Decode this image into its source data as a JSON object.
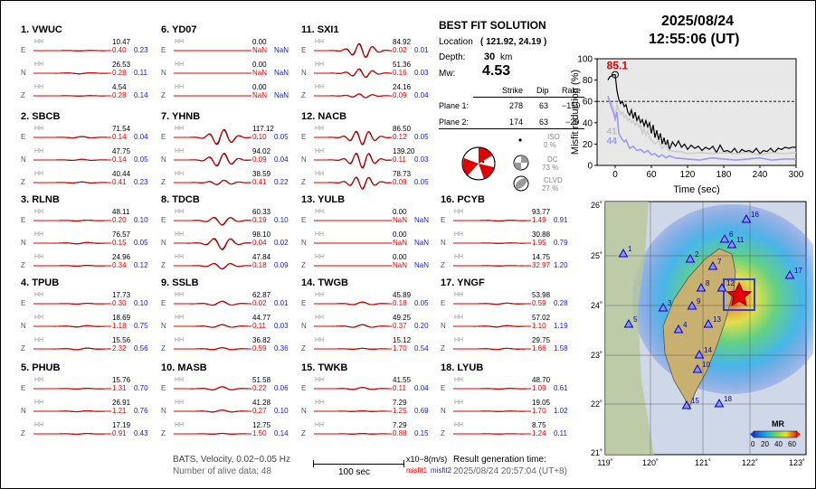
{
  "stations": [
    {
      "num": "1.",
      "name": "VWUC",
      "ch": [
        {
          "c": "E",
          "amp": "10.47",
          "m1": "0.40",
          "m2": "0.23",
          "a": 0.03,
          "f": 1.5
        },
        {
          "c": "N",
          "amp": "26.53",
          "m1": "0.28",
          "m2": "0.11",
          "a": 0.08,
          "f": 1.5
        },
        {
          "c": "Z",
          "amp": "4.54",
          "m1": "0.28",
          "m2": "0.14",
          "a": 0.03,
          "f": 1.5
        }
      ]
    },
    {
      "num": "2.",
      "name": "SBCB",
      "ch": [
        {
          "c": "E",
          "amp": "71.54",
          "m1": "0.14",
          "m2": "0.04",
          "a": 0.1,
          "f": 1.8
        },
        {
          "c": "N",
          "amp": "47.75",
          "m1": "0.14",
          "m2": "0.05",
          "a": 0.08,
          "f": 1.8
        },
        {
          "c": "Z",
          "amp": "40.44",
          "m1": "0.41",
          "m2": "0.23",
          "a": 0.08,
          "f": 1.8
        }
      ]
    },
    {
      "num": "3.",
      "name": "RLNB",
      "ch": [
        {
          "c": "E",
          "amp": "48.11",
          "m1": "0.20",
          "m2": "0.10",
          "a": 0.06,
          "f": 1.6
        },
        {
          "c": "N",
          "amp": "76.57",
          "m1": "0.15",
          "m2": "0.05",
          "a": 0.1,
          "f": 1.6
        },
        {
          "c": "Z",
          "amp": "24.96",
          "m1": "0.34",
          "m2": "0.12",
          "a": 0.05,
          "f": 1.6
        }
      ]
    },
    {
      "num": "4.",
      "name": "TPUB",
      "ch": [
        {
          "c": "E",
          "amp": "17.73",
          "m1": "0.30",
          "m2": "0.10",
          "a": 0.06,
          "f": 1.6
        },
        {
          "c": "N",
          "amp": "18.69",
          "m1": "1.18",
          "m2": "0.75",
          "a": 0.1,
          "f": 1.6
        },
        {
          "c": "Z",
          "amp": "15.56",
          "m1": "2.32",
          "m2": "0.56",
          "a": 0.12,
          "f": 1.6
        }
      ]
    },
    {
      "num": "5.",
      "name": "PHUB",
      "ch": [
        {
          "c": "E",
          "amp": "15.76",
          "m1": "1.31",
          "m2": "0.70",
          "a": 0.05,
          "f": 1.6
        },
        {
          "c": "N",
          "amp": "26.91",
          "m1": "1.21",
          "m2": "0.76",
          "a": 0.07,
          "f": 1.6
        },
        {
          "c": "Z",
          "amp": "17.19",
          "m1": "0.91",
          "m2": "0.43",
          "a": 0.06,
          "f": 1.6
        }
      ]
    },
    {
      "num": "6.",
      "name": "YD07",
      "ch": [
        {
          "c": "E",
          "amp": "0.00",
          "m1": "NaN",
          "m2": "NaN",
          "a": 0,
          "f": 1
        },
        {
          "c": "N",
          "amp": "0.00",
          "m1": "NaN",
          "m2": "NaN",
          "a": 0,
          "f": 1
        },
        {
          "c": "Z",
          "amp": "0.00",
          "m1": "NaN",
          "m2": "NaN",
          "a": 0,
          "f": 1
        }
      ]
    },
    {
      "num": "7.",
      "name": "YHNB",
      "ch": [
        {
          "c": "E",
          "amp": "117.12",
          "m1": "0.10",
          "m2": "0.05",
          "a": 1.0,
          "f": 2.5
        },
        {
          "c": "N",
          "amp": "94.02",
          "m1": "0.09",
          "m2": "0.04",
          "a": 0.85,
          "f": 2.5
        },
        {
          "c": "Z",
          "amp": "38.59",
          "m1": "0.41",
          "m2": "0.22",
          "a": 0.3,
          "f": 2.5
        }
      ]
    },
    {
      "num": "8.",
      "name": "TDCB",
      "ch": [
        {
          "c": "E",
          "amp": "60.33",
          "m1": "0.19",
          "m2": "0.10",
          "a": 0.55,
          "f": 2.2
        },
        {
          "c": "N",
          "amp": "98.10",
          "m1": "0.04",
          "m2": "0.02",
          "a": 0.8,
          "f": 2.2
        },
        {
          "c": "Z",
          "amp": "47.84",
          "m1": "0.18",
          "m2": "0.09",
          "a": 0.4,
          "f": 2.2
        }
      ]
    },
    {
      "num": "9.",
      "name": "SSLB",
      "ch": [
        {
          "c": "E",
          "amp": "62.87",
          "m1": "0.02",
          "m2": "0.01",
          "a": 0.3,
          "f": 1.8
        },
        {
          "c": "N",
          "amp": "44.77",
          "m1": "0.11",
          "m2": "0.03",
          "a": 0.2,
          "f": 1.8
        },
        {
          "c": "Z",
          "amp": "36.82",
          "m1": "0.59",
          "m2": "0.36",
          "a": 0.15,
          "f": 1.8
        }
      ]
    },
    {
      "num": "10.",
      "name": "MASB",
      "ch": [
        {
          "c": "E",
          "amp": "51.58",
          "m1": "0.22",
          "m2": "0.06",
          "a": 0.25,
          "f": 1.8
        },
        {
          "c": "N",
          "amp": "41.28",
          "m1": "0.27",
          "m2": "0.10",
          "a": 0.15,
          "f": 1.8
        },
        {
          "c": "Z",
          "amp": "12.75",
          "m1": "1.50",
          "m2": "0.14",
          "a": 0.06,
          "f": 1.8
        }
      ]
    },
    {
      "num": "11.",
      "name": "SXI1",
      "ch": [
        {
          "c": "E",
          "amp": "84.92",
          "m1": "0.02",
          "m2": "0.01",
          "a": 0.9,
          "f": 2.8
        },
        {
          "c": "N",
          "amp": "51.36",
          "m1": "0.16",
          "m2": "0.03",
          "a": 0.55,
          "f": 2.8
        },
        {
          "c": "Z",
          "amp": "24.16",
          "m1": "0.09",
          "m2": "0.04",
          "a": 0.25,
          "f": 2.8
        }
      ]
    },
    {
      "num": "12.",
      "name": "NACB",
      "ch": [
        {
          "c": "E",
          "amp": "86.50",
          "m1": "0.12",
          "m2": "0.05",
          "a": 0.9,
          "f": 3
        },
        {
          "c": "N",
          "amp": "139.20",
          "m1": "0.11",
          "m2": "0.03",
          "a": 1.0,
          "f": 3
        },
        {
          "c": "Z",
          "amp": "78.73",
          "m1": "0.09",
          "m2": "0.05",
          "a": 0.8,
          "f": 3
        }
      ]
    },
    {
      "num": "13.",
      "name": "YULB",
      "ch": [
        {
          "c": "E",
          "amp": "0.00",
          "m1": "NaN",
          "m2": "NaN",
          "a": 0,
          "f": 1
        },
        {
          "c": "N",
          "amp": "0.00",
          "m1": "NaN",
          "m2": "NaN",
          "a": 0,
          "f": 1
        },
        {
          "c": "Z",
          "amp": "0.00",
          "m1": "NaN",
          "m2": "NaN",
          "a": 0,
          "f": 1
        }
      ]
    },
    {
      "num": "14.",
      "name": "TWGB",
      "ch": [
        {
          "c": "E",
          "amp": "45.89",
          "m1": "0.18",
          "m2": "0.05",
          "a": 0.2,
          "f": 1.8
        },
        {
          "c": "N",
          "amp": "49.25",
          "m1": "0.37",
          "m2": "0.20",
          "a": 0.2,
          "f": 1.8
        },
        {
          "c": "Z",
          "amp": "15.12",
          "m1": "1.70",
          "m2": "0.54",
          "a": 0.07,
          "f": 1.8
        }
      ]
    },
    {
      "num": "15.",
      "name": "TWKB",
      "ch": [
        {
          "c": "E",
          "amp": "41.55",
          "m1": "0.11",
          "m2": "0.04",
          "a": 0.15,
          "f": 1.8
        },
        {
          "c": "N",
          "amp": "7.29",
          "m1": "1.25",
          "m2": "0.69",
          "a": 0.04,
          "f": 1.8
        },
        {
          "c": "Z",
          "amp": "7.29",
          "m1": "0.88",
          "m2": "0.15",
          "a": 0.04,
          "f": 1.8
        }
      ]
    },
    {
      "num": "16.",
      "name": "PCYB",
      "ch": [
        {
          "c": "E",
          "amp": "93.77",
          "m1": "1.49",
          "m2": "0.91",
          "a": 0.05,
          "f": 1.5
        },
        {
          "c": "N",
          "amp": "30.88",
          "m1": "1.95",
          "m2": "0.79",
          "a": 0.03,
          "f": 1.5
        },
        {
          "c": "Z",
          "amp": "14.75",
          "m1": "32.97",
          "m2": "1.20",
          "a": 0.02,
          "f": 1.5
        }
      ]
    },
    {
      "num": "17.",
      "name": "YNGF",
      "ch": [
        {
          "c": "E",
          "amp": "53.98",
          "m1": "0.59",
          "m2": "0.28",
          "a": 0.08,
          "f": 1.6
        },
        {
          "c": "N",
          "amp": "57.02",
          "m1": "1.10",
          "m2": "1.19",
          "a": 0.1,
          "f": 1.6
        },
        {
          "c": "Z",
          "amp": "29.75",
          "m1": "1.66",
          "m2": "1.58",
          "a": 0.08,
          "f": 1.6
        }
      ]
    },
    {
      "num": "18.",
      "name": "LYUB",
      "ch": [
        {
          "c": "E",
          "amp": "48.70",
          "m1": "1.09",
          "m2": "0.61",
          "a": 0.05,
          "f": 1.5
        },
        {
          "c": "N",
          "amp": "19.05",
          "m1": "1.70",
          "m2": "1.02",
          "a": 0.03,
          "f": 1.5
        },
        {
          "c": "Z",
          "amp": "8.75",
          "m1": "1.24",
          "m2": "0.11",
          "a": 0.02,
          "f": 1.5
        }
      ]
    }
  ],
  "channel_tag": "HH",
  "solution": {
    "heading": "BEST FIT SOLUTION",
    "location_label": "Location",
    "location": "( 121.92, 24.19 )",
    "depth_label": "Depth:",
    "depth": "30",
    "depth_unit": "km",
    "mw_label": "Mw:",
    "mw": "4.53",
    "col_strike": "Strike",
    "col_dip": "Dip",
    "col_rake": "Rake",
    "plane1_label": "Plane 1:",
    "plane1": [
      "278",
      "63",
      "−150"
    ],
    "plane2_label": "Plane 2:",
    "plane2": [
      "174",
      "63",
      "−29"
    ],
    "iso_label": "ISO",
    "iso": "0 %",
    "dc_label": "DC",
    "dc": "73 %",
    "clvd_label": "CLVD",
    "clvd": "27 %"
  },
  "header": {
    "date": "2025/08/24",
    "time": "12:55:06  (UT)"
  },
  "chart_data": {
    "type": "line",
    "xlabel": "Time (sec)",
    "ylabel": "Misfit reduction (%)",
    "xlim": [
      -30,
      300
    ],
    "ylim": [
      0,
      100
    ],
    "xticks": [
      0,
      60,
      120,
      180,
      240,
      300
    ],
    "yticks": [
      0,
      20,
      40,
      60,
      80,
      100
    ],
    "reference_line": 60,
    "annotations": [
      {
        "text": "85.1",
        "color": "#e00000"
      },
      {
        "text": "41",
        "color": "#bbbbbb"
      },
      {
        "text": "44",
        "color": "#9a9aee"
      }
    ],
    "series": [
      {
        "color": "#000000",
        "x": [
          -12,
          -9,
          -6,
          -3,
          0,
          3,
          6,
          9,
          12,
          15,
          18,
          21,
          24,
          27,
          30,
          33,
          36,
          39,
          42,
          45,
          48,
          51,
          54,
          57,
          60,
          63,
          66,
          69,
          72,
          75,
          78,
          81,
          84,
          87,
          90,
          95,
          100,
          105,
          110,
          115,
          120,
          126,
          132,
          138,
          144,
          150,
          156,
          162,
          168,
          174,
          180,
          186,
          192,
          198,
          204,
          210,
          216,
          222,
          228,
          234,
          240,
          246,
          252,
          258,
          264,
          270,
          276,
          282,
          288,
          294,
          300
        ],
        "y": [
          80,
          83,
          84,
          85,
          85.1,
          70,
          62,
          58,
          60,
          55,
          57,
          50,
          47,
          52,
          44,
          50,
          42,
          46,
          40,
          43,
          37,
          42,
          36,
          40,
          30,
          38,
          26,
          33,
          24,
          30,
          20,
          26,
          18,
          24,
          15,
          22,
          18,
          23,
          17,
          20,
          15,
          19,
          16,
          18,
          14,
          17,
          15,
          18,
          12,
          19,
          13,
          14,
          12,
          16,
          11,
          15,
          13,
          14,
          12,
          16,
          11,
          14,
          13,
          16,
          12,
          16,
          15,
          17,
          16,
          17,
          17
        ]
      },
      {
        "color": "#cccccc",
        "x": [
          -12,
          -9,
          -6,
          -3,
          0,
          3,
          6,
          9,
          12,
          15,
          18,
          21,
          24,
          27,
          30,
          33,
          36,
          39,
          42,
          45,
          48,
          51,
          54,
          57,
          60,
          66,
          72,
          78,
          84,
          90,
          100,
          110,
          120,
          140,
          160,
          180,
          200,
          220,
          240,
          260,
          280,
          300
        ],
        "y": [
          62,
          60,
          58,
          55,
          41,
          58,
          52,
          48,
          50,
          45,
          47,
          42,
          44,
          40,
          42,
          38,
          40,
          36,
          38,
          30,
          34,
          28,
          32,
          26,
          24,
          20,
          23,
          16,
          19,
          14,
          13,
          13,
          11,
          12,
          11,
          12,
          11,
          12,
          10,
          12,
          11,
          12
        ]
      },
      {
        "color": "#9a9aee",
        "x": [
          -12,
          -9,
          -6,
          -3,
          0,
          3,
          6,
          9,
          12,
          15,
          18,
          21,
          24,
          30,
          36,
          42,
          48,
          54,
          60,
          66,
          72,
          78,
          84,
          90,
          100,
          120,
          140,
          160,
          180,
          200,
          220,
          240,
          260,
          280,
          300
        ],
        "y": [
          65,
          60,
          54,
          50,
          44,
          50,
          30,
          27,
          24,
          22,
          24,
          20,
          16,
          18,
          14,
          15,
          12,
          14,
          10,
          11,
          8,
          10,
          7,
          9,
          7,
          6,
          5,
          7,
          6,
          5,
          6,
          7,
          5,
          6,
          6
        ]
      }
    ]
  },
  "map": {
    "lon_ticks": [
      "119˚",
      "120˚",
      "121˚",
      "122˚",
      "123˚"
    ],
    "lat_ticks": [
      "26˚",
      "25˚",
      "24˚",
      "23˚",
      "22˚",
      "21˚"
    ],
    "colorbar_label": "MR",
    "colorbar_ticks": [
      "0",
      "20",
      "40",
      "60"
    ],
    "station_labels": [
      "1",
      "2",
      "3",
      "4",
      "5",
      "7",
      "8",
      "9",
      "10",
      "11",
      "12",
      "13",
      "14",
      "15",
      "16",
      "17",
      "18",
      "6"
    ]
  },
  "footer": {
    "line1": "BATS, Velocity, 0.02−0.05 Hz",
    "line2": "Number of alive data: 48",
    "scale_unit": "x10−8(m/s)",
    "scale_len": "100 sec",
    "misfit1": "misfit1",
    "misfit2": "misfit2",
    "result_label": "Result generation time:",
    "result_time": "2025/08/24 20:57:04 (UT+8)"
  }
}
